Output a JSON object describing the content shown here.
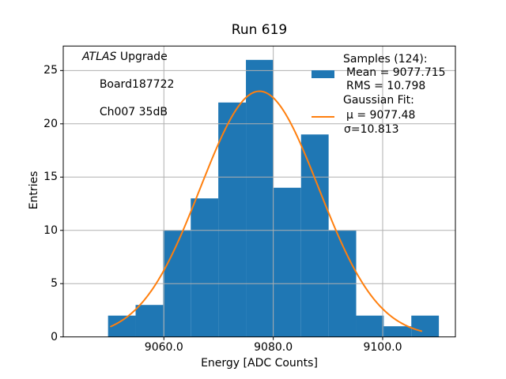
{
  "figure": {
    "title": "Run 619",
    "background": "#ffffff"
  },
  "annotation": {
    "line1_italic": "ATLAS",
    "line1_rest": " Upgrade",
    "line2": "Board187722",
    "line3": "Ch007 35dB"
  },
  "legend": {
    "samples_header": "Samples (124):",
    "mean_label": "Mean = 9077.715",
    "rms_label": "RMS = 10.798",
    "fit_header": "Gaussian Fit:",
    "mu_label": "μ = 9077.48",
    "sigma_label": "σ=10.813",
    "swatch_color": "#1f77b4",
    "line_color": "#ff7f0e"
  },
  "axes": {
    "xlabel": "Energy [ADC Counts]",
    "ylabel": "Entries"
  },
  "chart_data": {
    "type": "bar",
    "subtype": "histogram",
    "title": "Run 619",
    "xlabel": "Energy [ADC Counts]",
    "ylabel": "Entries",
    "n_samples": 124,
    "bin_edges": [
      9049.79,
      9054.83,
      9059.87,
      9064.91,
      9069.95,
      9075.0,
      9080.04,
      9085.08,
      9090.12,
      9095.16,
      9100.2,
      9105.24,
      9110.28
    ],
    "counts": [
      2,
      3,
      10,
      13,
      22,
      26,
      14,
      19,
      10,
      2,
      1,
      2
    ],
    "stats": {
      "mean": 9077.715,
      "rms": 10.798
    },
    "fit": {
      "type": "gaussian",
      "mu": 9077.48,
      "sigma": 10.813,
      "amplitude": 23.06,
      "x_start": 9050.3,
      "x_end": 9107.1
    },
    "xlim": [
      9041.6,
      9113.3
    ],
    "ylim": [
      0,
      27.3
    ],
    "xticks": [
      {
        "value": 9060,
        "label": "9060.0"
      },
      {
        "value": 9080,
        "label": "9080.0"
      },
      {
        "value": 9100,
        "label": "9100.0"
      }
    ],
    "yticks": [
      {
        "value": 0,
        "label": "0"
      },
      {
        "value": 5,
        "label": "5"
      },
      {
        "value": 10,
        "label": "10"
      },
      {
        "value": 15,
        "label": "15"
      },
      {
        "value": 20,
        "label": "20"
      },
      {
        "value": 25,
        "label": "25"
      }
    ],
    "grid": true,
    "legend_position": "upper right",
    "colors": {
      "bar": "#1f77b4",
      "fit_line": "#ff7f0e",
      "grid": "#b0b0b0",
      "spine": "#000000"
    }
  }
}
